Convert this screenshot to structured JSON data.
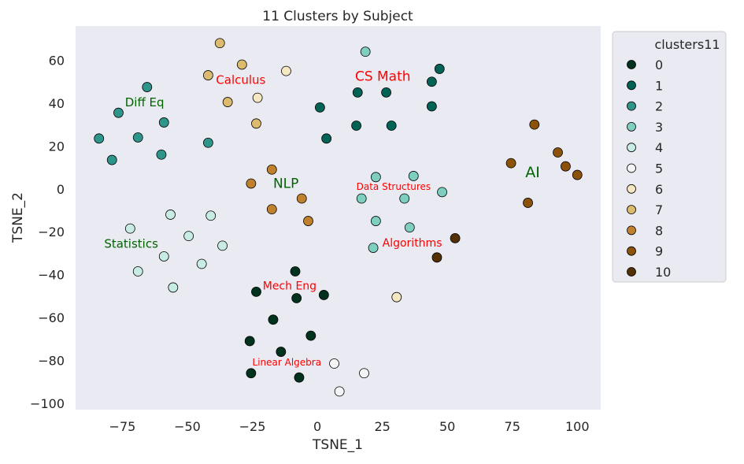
{
  "chart_data": {
    "type": "scatter",
    "title": "11 Clusters by Subject",
    "xlabel": "TSNE_1",
    "ylabel": "TSNE_2",
    "xlim": [
      -93,
      109
    ],
    "ylim": [
      -103,
      76
    ],
    "xticks": [
      -75,
      -50,
      -25,
      0,
      25,
      50,
      75,
      100
    ],
    "yticks": [
      -100,
      -80,
      -60,
      -40,
      -20,
      0,
      20,
      40,
      60
    ],
    "xtick_labels": [
      "−75",
      "−50",
      "−25",
      "0",
      "25",
      "50",
      "75",
      "100"
    ],
    "ytick_labels": [
      "−100",
      "−80",
      "−60",
      "−40",
      "−20",
      "0",
      "20",
      "40",
      "60"
    ],
    "grid": false,
    "background": "#eaeaf2",
    "legend": {
      "title": "clusters11",
      "placement": "outside-upper-right",
      "entries": [
        "0",
        "1",
        "2",
        "3",
        "4",
        "5",
        "6",
        "7",
        "8",
        "9",
        "10"
      ]
    },
    "cluster_colors": [
      "#00321e",
      "#016356",
      "#2e958a",
      "#7ecfbf",
      "#c8ece4",
      "#f5f5f5",
      "#f5e7c1",
      "#dcbb6f",
      "#bf812d",
      "#8c520a",
      "#543005"
    ],
    "series": [
      {
        "name": "0",
        "points": [
          [
            -8.5,
            -38.5
          ],
          [
            -23.5,
            -48
          ],
          [
            -8,
            -51
          ],
          [
            2.5,
            -49.5
          ],
          [
            -17,
            -61
          ],
          [
            -26,
            -71
          ],
          [
            -14,
            -76
          ],
          [
            -2.5,
            -68.5
          ],
          [
            -25.5,
            -86
          ],
          [
            -7,
            -88
          ]
        ]
      },
      {
        "name": "1",
        "points": [
          [
            15.5,
            45
          ],
          [
            26.5,
            45
          ],
          [
            47,
            56
          ],
          [
            44,
            50
          ],
          [
            44,
            38.5
          ],
          [
            1,
            38
          ],
          [
            15,
            29.5
          ],
          [
            28.5,
            29.5
          ],
          [
            3.5,
            23.5
          ]
        ]
      },
      {
        "name": "2",
        "points": [
          [
            -65.5,
            47.5
          ],
          [
            -76.5,
            35.5
          ],
          [
            -59,
            31
          ],
          [
            -69,
            24
          ],
          [
            -84,
            23.5
          ],
          [
            -79,
            13.5
          ],
          [
            -60,
            16
          ],
          [
            -42,
            21.5
          ]
        ]
      },
      {
        "name": "3",
        "points": [
          [
            18.5,
            64
          ],
          [
            22.5,
            5.5
          ],
          [
            37,
            6
          ],
          [
            48,
            -1.5
          ],
          [
            17,
            -4.5
          ],
          [
            33.5,
            -4.5
          ],
          [
            22.5,
            -15
          ],
          [
            35.5,
            -18
          ],
          [
            21.5,
            -27.5
          ]
        ]
      },
      {
        "name": "4",
        "points": [
          [
            -72,
            -18.5
          ],
          [
            -56.5,
            -12
          ],
          [
            -41,
            -12.5
          ],
          [
            -49.5,
            -22
          ],
          [
            -36.5,
            -26.5
          ],
          [
            -59,
            -31.5
          ],
          [
            -44.5,
            -35
          ],
          [
            -69,
            -38.5
          ],
          [
            -55.5,
            -46
          ]
        ]
      },
      {
        "name": "5",
        "points": [
          [
            6.5,
            -81.5
          ],
          [
            18,
            -86
          ],
          [
            8.5,
            -94.5
          ]
        ]
      },
      {
        "name": "6",
        "points": [
          [
            -12,
            55
          ],
          [
            -23,
            42.5
          ],
          [
            30.5,
            -50.5
          ]
        ]
      },
      {
        "name": "7",
        "points": [
          [
            -37.5,
            68
          ],
          [
            -29,
            58
          ],
          [
            -42,
            53
          ],
          [
            -34.5,
            40.5
          ],
          [
            -23.5,
            30.5
          ]
        ]
      },
      {
        "name": "8",
        "points": [
          [
            -17.5,
            9
          ],
          [
            -25.5,
            2.5
          ],
          [
            -6,
            -4.5
          ],
          [
            -17.5,
            -9.5
          ],
          [
            -3.5,
            -15
          ]
        ]
      },
      {
        "name": "9",
        "points": [
          [
            83.5,
            30
          ],
          [
            92.5,
            17
          ],
          [
            74.5,
            12
          ],
          [
            95.5,
            10.5
          ],
          [
            100,
            6.5
          ],
          [
            81,
            -6.5
          ]
        ]
      },
      {
        "name": "10",
        "points": [
          [
            53,
            -23
          ],
          [
            46,
            -32
          ]
        ]
      }
    ],
    "annotations": [
      {
        "text": "Calculus",
        "x": -39,
        "y": 49,
        "color": "#ff0000",
        "size": "medium"
      },
      {
        "text": "CS Math",
        "x": 14.5,
        "y": 50.5,
        "color": "#ff0000",
        "size": "large"
      },
      {
        "text": "Diff Eq",
        "x": -74,
        "y": 38.5,
        "color": "#006400",
        "size": "medium"
      },
      {
        "text": "NLP",
        "x": -17,
        "y": 0.5,
        "color": "#006400",
        "size": "large"
      },
      {
        "text": "AI",
        "x": 80,
        "y": 5.5,
        "color": "#006400",
        "size": "xlarge"
      },
      {
        "text": "Data Structures",
        "x": 15,
        "y": -0.5,
        "color": "#ff0000",
        "size": "small"
      },
      {
        "text": "Statistics",
        "x": -82,
        "y": -27.5,
        "color": "#006400",
        "size": "medium"
      },
      {
        "text": "Algorithms",
        "x": 25,
        "y": -27,
        "color": "#ff0000",
        "size": "medium-small"
      },
      {
        "text": "Mech Eng",
        "x": -21,
        "y": -47,
        "color": "#ff0000",
        "size": "medium-small"
      },
      {
        "text": "Linear Algebra",
        "x": -25,
        "y": -82.5,
        "color": "#ff0000",
        "size": "small"
      }
    ]
  }
}
